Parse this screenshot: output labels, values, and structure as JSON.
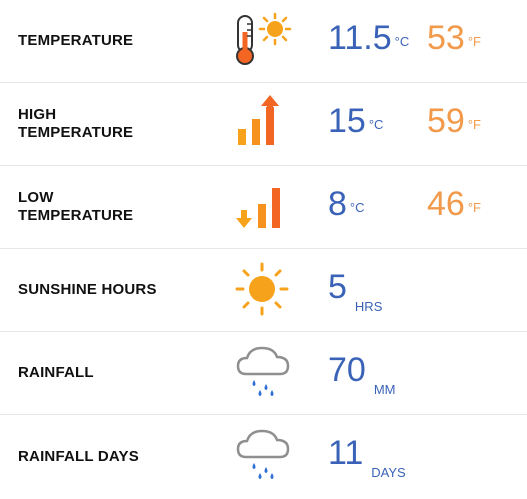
{
  "rows": [
    {
      "label": "TEMPERATURE",
      "icon": "thermometer-sun-icon",
      "value_c": "11.5",
      "unit_c": "°C",
      "value_f": "53",
      "unit_f": "°F"
    },
    {
      "label": "HIGH TEMPERATURE",
      "icon": "bars-up-arrow-icon",
      "value_c": "15",
      "unit_c": "°C",
      "value_f": "59",
      "unit_f": "°F"
    },
    {
      "label": "LOW TEMPERATURE",
      "icon": "bars-down-arrow-icon",
      "value_c": "8",
      "unit_c": "°C",
      "value_f": "46",
      "unit_f": "°F"
    },
    {
      "label": "SUNSHINE HOURS",
      "icon": "sun-icon",
      "value": "5",
      "unit": "HRS"
    },
    {
      "label": "RAINFALL",
      "icon": "rain-cloud-icon",
      "value": "70",
      "unit": "MM"
    },
    {
      "label": "RAINFALL DAYS",
      "icon": "rain-cloud-icon",
      "value": "11",
      "unit": "DAYS"
    }
  ],
  "colors": {
    "celsius": "#3a63b8",
    "fahrenheit": "#f29a4b",
    "sun": "#f7a21b",
    "bar": "#f26522",
    "cloud": "#8f8f8f",
    "rain": "#2f6fd6"
  }
}
